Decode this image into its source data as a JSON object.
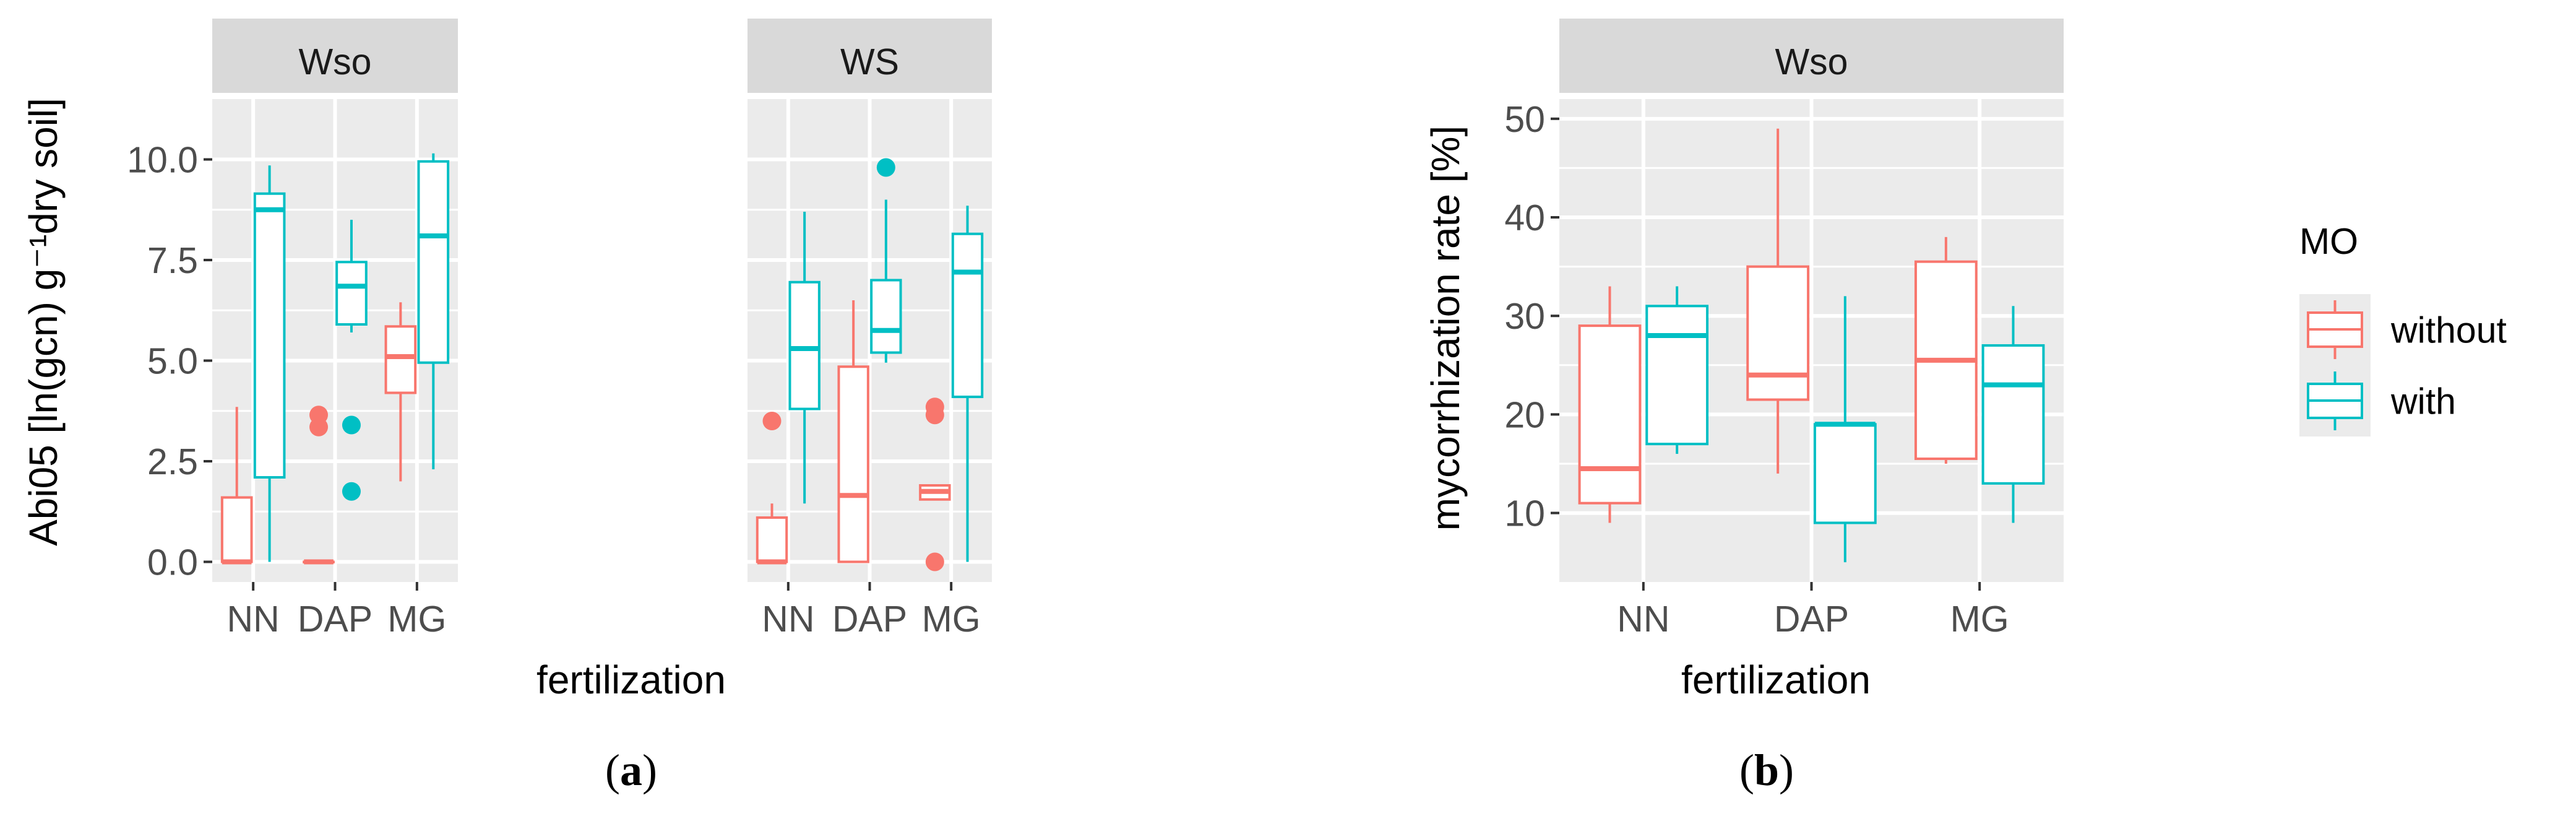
{
  "figure": {
    "caption_a": "a",
    "caption_b": "b"
  },
  "colors": {
    "without": "#F8766D",
    "with": "#00BFC4"
  },
  "legend": {
    "title": "MO",
    "items": [
      {
        "key": "without",
        "label": "without"
      },
      {
        "key": "with",
        "label": "with"
      }
    ]
  },
  "chart_data": [
    {
      "id": "a",
      "type": "boxplot",
      "ylabel": "Abi05 [ln(gcn) g⁻¹dry soil]",
      "xlabel": "fertilization",
      "ylim": [
        -0.5,
        11.5
      ],
      "yticks": [
        0.0,
        2.5,
        5.0,
        7.5,
        10.0
      ],
      "ytick_labels": [
        "0.0",
        "2.5",
        "5.0",
        "7.5",
        "10.0"
      ],
      "categories": [
        "NN",
        "DAP",
        "MG"
      ],
      "panels": [
        {
          "strip": "Wso",
          "boxes": [
            {
              "cat": "NN",
              "group": "without",
              "lower": 0.0,
              "q1": 0.0,
              "median": 0.0,
              "q3": 1.6,
              "upper": 3.85,
              "outliers": []
            },
            {
              "cat": "NN",
              "group": "with",
              "lower": 0.0,
              "q1": 2.1,
              "median": 8.75,
              "q3": 9.15,
              "upper": 9.85,
              "outliers": []
            },
            {
              "cat": "DAP",
              "group": "without",
              "lower": 0.0,
              "q1": 0.0,
              "median": 0.0,
              "q3": 0.0,
              "upper": 0.0,
              "outliers": [
                3.65,
                3.35
              ]
            },
            {
              "cat": "DAP",
              "group": "with",
              "lower": 5.7,
              "q1": 5.9,
              "median": 6.85,
              "q3": 7.45,
              "upper": 8.5,
              "outliers": [
                3.4,
                1.75
              ]
            },
            {
              "cat": "MG",
              "group": "without",
              "lower": 2.0,
              "q1": 4.2,
              "median": 5.1,
              "q3": 5.85,
              "upper": 6.45,
              "outliers": []
            },
            {
              "cat": "MG",
              "group": "with",
              "lower": 2.3,
              "q1": 4.95,
              "median": 8.1,
              "q3": 9.95,
              "upper": 10.15,
              "outliers": []
            }
          ]
        },
        {
          "strip": "WS",
          "boxes": [
            {
              "cat": "NN",
              "group": "without",
              "lower": 0.0,
              "q1": 0.0,
              "median": 0.0,
              "q3": 1.1,
              "upper": 1.45,
              "outliers": [
                3.5
              ]
            },
            {
              "cat": "NN",
              "group": "with",
              "lower": 1.45,
              "q1": 3.8,
              "median": 5.3,
              "q3": 6.95,
              "upper": 8.7,
              "outliers": []
            },
            {
              "cat": "DAP",
              "group": "without",
              "lower": 0.0,
              "q1": 0.0,
              "median": 1.65,
              "q3": 4.85,
              "upper": 6.5,
              "outliers": []
            },
            {
              "cat": "DAP",
              "group": "with",
              "lower": 4.95,
              "q1": 5.2,
              "median": 5.75,
              "q3": 7.0,
              "upper": 9.0,
              "outliers": [
                9.8
              ]
            },
            {
              "cat": "MG",
              "group": "without",
              "lower": 1.55,
              "q1": 1.55,
              "median": 1.75,
              "q3": 1.9,
              "upper": 1.9,
              "outliers": [
                3.85,
                3.65,
                0.0
              ]
            },
            {
              "cat": "MG",
              "group": "with",
              "lower": 0.0,
              "q1": 4.1,
              "median": 7.2,
              "q3": 8.15,
              "upper": 8.85,
              "outliers": []
            }
          ]
        }
      ]
    },
    {
      "id": "b",
      "type": "boxplot",
      "ylabel": "mycorrhization rate [%]",
      "xlabel": "fertilization",
      "ylim": [
        3,
        52
      ],
      "yticks": [
        10,
        20,
        30,
        40,
        50
      ],
      "ytick_labels": [
        "10",
        "20",
        "30",
        "40",
        "50"
      ],
      "categories": [
        "NN",
        "DAP",
        "MG"
      ],
      "panels": [
        {
          "strip": "Wso",
          "boxes": [
            {
              "cat": "NN",
              "group": "without",
              "lower": 9,
              "q1": 11,
              "median": 14.5,
              "q3": 29,
              "upper": 33,
              "outliers": []
            },
            {
              "cat": "NN",
              "group": "with",
              "lower": 16,
              "q1": 17,
              "median": 28,
              "q3": 31,
              "upper": 33,
              "outliers": []
            },
            {
              "cat": "DAP",
              "group": "without",
              "lower": 14,
              "q1": 21.5,
              "median": 24,
              "q3": 35,
              "upper": 49,
              "outliers": []
            },
            {
              "cat": "DAP",
              "group": "with",
              "lower": 5,
              "q1": 9,
              "median": 19,
              "q3": 19,
              "upper": 32,
              "outliers": []
            },
            {
              "cat": "MG",
              "group": "without",
              "lower": 15,
              "q1": 15.5,
              "median": 25.5,
              "q3": 35.5,
              "upper": 38,
              "outliers": []
            },
            {
              "cat": "MG",
              "group": "with",
              "lower": 9,
              "q1": 13,
              "median": 23,
              "q3": 27,
              "upper": 31,
              "outliers": []
            }
          ]
        }
      ]
    }
  ]
}
